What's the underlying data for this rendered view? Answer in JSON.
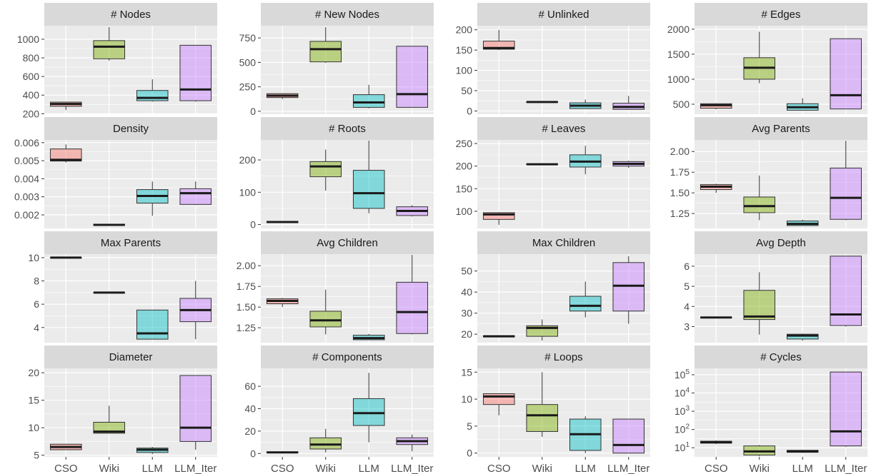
{
  "chart_data": {
    "type": "boxplot-facets",
    "categories": [
      "CSO",
      "Wiki",
      "LLM",
      "LLM_Iter"
    ],
    "colors": {
      "CSO": "#F8766D",
      "Wiki": "#7CAE00",
      "LLM": "#00BFC4",
      "LLM_Iter": "#C77CFF"
    },
    "fill_alpha": 0.45,
    "panel_bg": "#EBEBEB",
    "strip_bg": "#D9D9D9",
    "panels": [
      {
        "title": "# Nodes",
        "ylim": [
          195,
          1145
        ],
        "ticks": [
          200,
          400,
          600,
          800,
          1000
        ],
        "tick_labels": [
          "200",
          "400",
          "600",
          "800",
          "1000"
        ],
        "boxes": [
          {
            "lo": 240,
            "q1": 280,
            "med": 305,
            "q3": 325,
            "hi": 330
          },
          {
            "lo": 770,
            "q1": 790,
            "med": 920,
            "q3": 985,
            "hi": 1130
          },
          {
            "lo": 330,
            "q1": 340,
            "med": 370,
            "q3": 450,
            "hi": 570
          },
          {
            "lo": 330,
            "q1": 340,
            "med": 460,
            "q3": 935,
            "hi": 935
          }
        ]
      },
      {
        "title": "# New Nodes",
        "ylim": [
          -30,
          875
        ],
        "ticks": [
          0,
          250,
          500,
          750
        ],
        "tick_labels": [
          "0",
          "250",
          "500",
          "750"
        ],
        "boxes": [
          {
            "lo": 125,
            "q1": 140,
            "med": 160,
            "q3": 180,
            "hi": 185
          },
          {
            "lo": 495,
            "q1": 505,
            "med": 635,
            "q3": 715,
            "hi": 860
          },
          {
            "lo": 30,
            "q1": 40,
            "med": 90,
            "q3": 170,
            "hi": 270
          },
          {
            "lo": 40,
            "q1": 40,
            "med": 175,
            "q3": 665,
            "hi": 665
          }
        ]
      },
      {
        "title": "# Unlinked",
        "ylim": [
          -8,
          210
        ],
        "ticks": [
          0,
          50,
          100,
          150,
          200
        ],
        "tick_labels": [
          "0",
          "50",
          "100",
          "150",
          "200"
        ],
        "boxes": [
          {
            "lo": 150,
            "q1": 152,
            "med": 155,
            "q3": 172,
            "hi": 200
          },
          {
            "lo": 20,
            "q1": 21,
            "med": 22,
            "q3": 23,
            "hi": 24
          },
          {
            "lo": 5,
            "q1": 6,
            "med": 13,
            "q3": 20,
            "hi": 28
          },
          {
            "lo": 3,
            "q1": 4,
            "med": 10,
            "q3": 19,
            "hi": 37
          }
        ]
      },
      {
        "title": "# Edges",
        "ylim": [
          300,
          2070
        ],
        "ticks": [
          500,
          1000,
          1500,
          2000
        ],
        "tick_labels": [
          "500",
          "1000",
          "1500",
          "2000"
        ],
        "boxes": [
          {
            "lo": 400,
            "q1": 420,
            "med": 480,
            "q3": 510,
            "hi": 520
          },
          {
            "lo": 920,
            "q1": 1000,
            "med": 1230,
            "q3": 1430,
            "hi": 1950
          },
          {
            "lo": 370,
            "q1": 380,
            "med": 440,
            "q3": 510,
            "hi": 620
          },
          {
            "lo": 400,
            "q1": 405,
            "med": 680,
            "q3": 1810,
            "hi": 1810
          }
        ]
      },
      {
        "title": "Density",
        "ylim": [
          0.00125,
          0.00615
        ],
        "ticks": [
          0.002,
          0.003,
          0.004,
          0.005,
          0.006
        ],
        "tick_labels": [
          "0.002",
          "0.003",
          "0.004",
          "0.005",
          "0.006"
        ],
        "boxes": [
          {
            "lo": 0.0049,
            "q1": 0.00498,
            "med": 0.00505,
            "q3": 0.00565,
            "hi": 0.0059
          },
          {
            "lo": 0.00142,
            "q1": 0.00143,
            "med": 0.00145,
            "q3": 0.00148,
            "hi": 0.0015
          },
          {
            "lo": 0.00195,
            "q1": 0.00265,
            "med": 0.00305,
            "q3": 0.0034,
            "hi": 0.00385
          },
          {
            "lo": 0.00255,
            "q1": 0.00258,
            "med": 0.0032,
            "q3": 0.00345,
            "hi": 0.00385
          }
        ]
      },
      {
        "title": "# Roots",
        "ylim": [
          -12,
          262
        ],
        "ticks": [
          0,
          100,
          200
        ],
        "tick_labels": [
          "0",
          "100",
          "200"
        ],
        "boxes": [
          {
            "lo": 5,
            "q1": 6,
            "med": 8,
            "q3": 10,
            "hi": 11
          },
          {
            "lo": 105,
            "q1": 148,
            "med": 180,
            "q3": 195,
            "hi": 232
          },
          {
            "lo": 35,
            "q1": 50,
            "med": 97,
            "q3": 168,
            "hi": 260
          },
          {
            "lo": 25,
            "q1": 28,
            "med": 42,
            "q3": 55,
            "hi": 60
          }
        ]
      },
      {
        "title": "# Leaves",
        "ylim": [
          62,
          258
        ],
        "ticks": [
          100,
          150,
          200,
          250
        ],
        "tick_labels": [
          "100",
          "150",
          "200",
          "250"
        ],
        "boxes": [
          {
            "lo": 70,
            "q1": 82,
            "med": 93,
            "q3": 97,
            "hi": 98
          },
          {
            "lo": 203,
            "q1": 203.5,
            "med": 204,
            "q3": 205,
            "hi": 206
          },
          {
            "lo": 182,
            "q1": 198,
            "med": 210,
            "q3": 225,
            "hi": 245
          },
          {
            "lo": 196,
            "q1": 200,
            "med": 205,
            "q3": 210,
            "hi": 212
          }
        ]
      },
      {
        "title": "Avg Parents",
        "ylim": [
          1.07,
          2.14
        ],
        "ticks": [
          1.25,
          1.5,
          1.75,
          2.0
        ],
        "tick_labels": [
          "1.25",
          "1.50",
          "1.75",
          "2.00"
        ],
        "boxes": [
          {
            "lo": 1.5,
            "q1": 1.54,
            "med": 1.575,
            "q3": 1.6,
            "hi": 1.61
          },
          {
            "lo": 1.17,
            "q1": 1.26,
            "med": 1.34,
            "q3": 1.45,
            "hi": 1.71
          },
          {
            "lo": 1.1,
            "q1": 1.105,
            "med": 1.125,
            "q3": 1.16,
            "hi": 1.175
          },
          {
            "lo": 1.17,
            "q1": 1.18,
            "med": 1.44,
            "q3": 1.8,
            "hi": 2.13
          }
        ]
      },
      {
        "title": "Max Parents",
        "ylim": [
          2.7,
          10.3
        ],
        "ticks": [
          4,
          6,
          8,
          10
        ],
        "tick_labels": [
          "4",
          "6",
          "8",
          "10"
        ],
        "boxes": [
          {
            "lo": 10,
            "q1": 10,
            "med": 10,
            "q3": 10,
            "hi": 10
          },
          {
            "lo": 7,
            "q1": 7,
            "med": 7,
            "q3": 7,
            "hi": 7
          },
          {
            "lo": 3,
            "q1": 3,
            "med": 3.5,
            "q3": 5.5,
            "hi": 5.5
          },
          {
            "lo": 3,
            "q1": 4.5,
            "med": 5.5,
            "q3": 6.5,
            "hi": 8
          }
        ]
      },
      {
        "title": "Avg Children",
        "ylim": [
          1.07,
          2.14
        ],
        "ticks": [
          1.25,
          1.5,
          1.75,
          2.0
        ],
        "tick_labels": [
          "1.25",
          "1.50",
          "1.75",
          "2.00"
        ],
        "boxes": [
          {
            "lo": 1.5,
            "q1": 1.54,
            "med": 1.575,
            "q3": 1.6,
            "hi": 1.61
          },
          {
            "lo": 1.17,
            "q1": 1.26,
            "med": 1.34,
            "q3": 1.45,
            "hi": 1.71
          },
          {
            "lo": 1.1,
            "q1": 1.105,
            "med": 1.125,
            "q3": 1.16,
            "hi": 1.175
          },
          {
            "lo": 1.17,
            "q1": 1.18,
            "med": 1.44,
            "q3": 1.8,
            "hi": 2.13
          }
        ]
      },
      {
        "title": "Max Children",
        "ylim": [
          16,
          58
        ],
        "ticks": [
          20,
          30,
          40,
          50
        ],
        "tick_labels": [
          "20",
          "30",
          "40",
          "50"
        ],
        "boxes": [
          {
            "lo": 18.5,
            "q1": 18.7,
            "med": 19,
            "q3": 19.3,
            "hi": 19.5
          },
          {
            "lo": 17,
            "q1": 19,
            "med": 23,
            "q3": 24,
            "hi": 27
          },
          {
            "lo": 28,
            "q1": 31,
            "med": 33.5,
            "q3": 38,
            "hi": 45
          },
          {
            "lo": 25,
            "q1": 31,
            "med": 43,
            "q3": 54,
            "hi": 57
          }
        ]
      },
      {
        "title": "Avg Depth",
        "ylim": [
          2.2,
          6.6
        ],
        "ticks": [
          3,
          4,
          5,
          6
        ],
        "tick_labels": [
          "3",
          "4",
          "5",
          "6"
        ],
        "boxes": [
          {
            "lo": 3.42,
            "q1": 3.43,
            "med": 3.45,
            "q3": 3.47,
            "hi": 3.48
          },
          {
            "lo": 2.6,
            "q1": 3.35,
            "med": 3.5,
            "q3": 4.8,
            "hi": 5.7
          },
          {
            "lo": 2.3,
            "q1": 2.38,
            "med": 2.55,
            "q3": 2.62,
            "hi": 2.65
          },
          {
            "lo": 3.0,
            "q1": 3.05,
            "med": 3.6,
            "q3": 6.5,
            "hi": 6.5
          }
        ]
      },
      {
        "title": "Diameter",
        "ylim": [
          4.7,
          20.8
        ],
        "ticks": [
          5,
          10,
          15,
          20
        ],
        "tick_labels": [
          "5",
          "10",
          "15",
          "20"
        ],
        "boxes": [
          {
            "lo": 6,
            "q1": 6,
            "med": 6.5,
            "q3": 7,
            "hi": 7
          },
          {
            "lo": 9,
            "q1": 9,
            "med": 9.3,
            "q3": 11,
            "hi": 14
          },
          {
            "lo": 5.2,
            "q1": 5.5,
            "med": 6,
            "q3": 6.3,
            "hi": 6.5
          },
          {
            "lo": 6,
            "q1": 7.5,
            "med": 10,
            "q3": 19.5,
            "hi": 19.5
          }
        ]
      },
      {
        "title": "# Components",
        "ylim": [
          -3,
          76
        ],
        "ticks": [
          0,
          20,
          40,
          60
        ],
        "tick_labels": [
          "0",
          "20",
          "40",
          "60"
        ],
        "boxes": [
          {
            "lo": 0,
            "q1": 0.5,
            "med": 1,
            "q3": 1.5,
            "hi": 2
          },
          {
            "lo": 1,
            "q1": 4,
            "med": 8,
            "q3": 14,
            "hi": 22
          },
          {
            "lo": 10,
            "q1": 25,
            "med": 36,
            "q3": 49,
            "hi": 72
          },
          {
            "lo": 2,
            "q1": 8,
            "med": 11,
            "q3": 14,
            "hi": 17
          }
        ]
      },
      {
        "title": "# Loops",
        "ylim": [
          -0.7,
          15.7
        ],
        "ticks": [
          0,
          5,
          10,
          15
        ],
        "tick_labels": [
          "0",
          "5",
          "10",
          "15"
        ],
        "boxes": [
          {
            "lo": 7,
            "q1": 9,
            "med": 10.5,
            "q3": 11,
            "hi": 11
          },
          {
            "lo": 3,
            "q1": 4,
            "med": 7,
            "q3": 9,
            "hi": 15
          },
          {
            "lo": 0,
            "q1": 0.5,
            "med": 3.5,
            "q3": 6.3,
            "hi": 6.8
          },
          {
            "lo": 0,
            "q1": 0,
            "med": 1.5,
            "q3": 6.3,
            "hi": 6.3
          }
        ]
      },
      {
        "title": "# Cycles",
        "scale": "log10",
        "ylim": [
          0.5,
          5.35
        ],
        "ticks": [
          1,
          2,
          3,
          4,
          5
        ],
        "tick_labels": [
          "10^1",
          "10^2",
          "10^3",
          "10^4",
          "10^5"
        ],
        "boxes": [
          {
            "lo": 1.2,
            "q1": 1.25,
            "med": 1.3,
            "q3": 1.36,
            "hi": 1.4
          },
          {
            "lo": 0.55,
            "q1": 0.6,
            "med": 0.8,
            "q3": 1.1,
            "hi": 1.15
          },
          {
            "lo": 0.72,
            "q1": 0.75,
            "med": 0.8,
            "q3": 0.86,
            "hi": 0.88
          },
          {
            "lo": 1.05,
            "q1": 1.1,
            "med": 1.9,
            "q3": 5.15,
            "hi": 5.15
          }
        ]
      }
    ]
  }
}
